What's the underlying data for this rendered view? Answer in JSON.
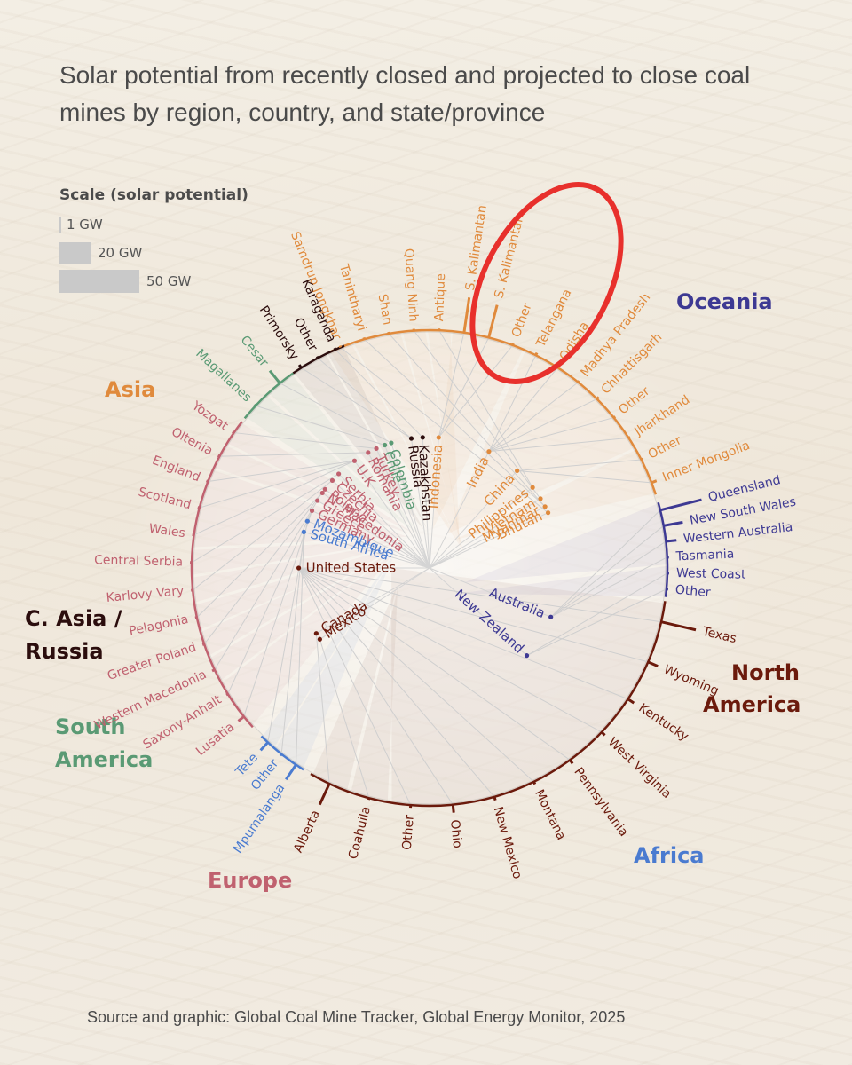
{
  "title": "Solar potential from recently closed and projected to close coal mines by region, country, and state/province",
  "source": "Source and graphic: Global Coal Mine Tracker, Global Energy Monitor, 2025",
  "scale": {
    "title": "Scale (solar potential)",
    "items": [
      {
        "label": "1 GW",
        "value": 1
      },
      {
        "label": "20 GW",
        "value": 20
      },
      {
        "label": "50 GW",
        "value": 50
      }
    ]
  },
  "colors": {
    "asia": "#e08a3c",
    "oceania": "#3d3993",
    "north_america": "#6b1a0c",
    "africa": "#4a7bd0",
    "europe": "#c0616f",
    "south_america": "#5a9a74",
    "central_asia_russia": "#2b0d0d",
    "highlight": "#e8302c"
  },
  "chart_data": {
    "type": "radial hierarchy",
    "unit": "GW",
    "highlight": [
      "Queensland",
      "New South Wales"
    ],
    "regions": [
      {
        "name": "Asia",
        "key": "asia",
        "label_lines": [
          "Asia"
        ],
        "countries": [
          "China",
          "India",
          "Indonesia",
          "Philippines",
          "Vietnam",
          "Myanmar",
          "Bhutan"
        ],
        "states": [
          {
            "name": "Inner Mongolia",
            "country": "China",
            "value": 6
          },
          {
            "name": "Other",
            "country": "China",
            "value": 2
          },
          {
            "name": "Jharkhand",
            "country": "India",
            "value": 2
          },
          {
            "name": "Other",
            "country": "India",
            "value": 2
          },
          {
            "name": "Chhattisgarh",
            "country": "India",
            "value": 3
          },
          {
            "name": "Madhya Pradesh",
            "country": "India",
            "value": 2
          },
          {
            "name": "Odisha",
            "country": "India",
            "value": 3
          },
          {
            "name": "Telangana",
            "country": "India",
            "value": 3
          },
          {
            "name": "Other",
            "country": "Indonesia",
            "value": 1
          },
          {
            "name": "S. Kalimantan",
            "country": "Indonesia",
            "value": 38
          },
          {
            "name": "S. Kalimantan",
            "country": "Indonesia",
            "value": 40
          },
          {
            "name": "Antique",
            "country": "Philippines",
            "value": 1
          },
          {
            "name": "Quang Ninh",
            "country": "Vietnam",
            "value": 1
          },
          {
            "name": "Shan",
            "country": "Myanmar",
            "value": 1
          },
          {
            "name": "Tanintharyi",
            "country": "Myanmar",
            "value": 1
          },
          {
            "name": "Samdrup Jongkhar",
            "country": "Bhutan",
            "value": 1
          }
        ]
      },
      {
        "name": "C. Asia / Russia",
        "key": "central_asia_russia",
        "label_lines": [
          "C. Asia /",
          "Russia"
        ],
        "countries": [
          "Kazakhstan",
          "Russia"
        ],
        "states": [
          {
            "name": "Karaganda",
            "country": "Kazakhstan",
            "value": 1
          },
          {
            "name": "Other",
            "country": "Russia",
            "value": 1
          },
          {
            "name": "Primorsky",
            "country": "Russia",
            "value": 4
          }
        ]
      },
      {
        "name": "South America",
        "key": "south_america",
        "label_lines": [
          "South",
          "America"
        ],
        "countries": [
          "Colombia",
          "Chile"
        ],
        "states": [
          {
            "name": "Cesar",
            "country": "Colombia",
            "value": 18
          },
          {
            "name": "Magallanes",
            "country": "Chile",
            "value": 1
          }
        ]
      },
      {
        "name": "Europe",
        "key": "europe",
        "label_lines": [
          "Europe"
        ],
        "countries": [
          "Turkey",
          "Romania",
          "U.K",
          "Serbia",
          "Czechia",
          "Poland",
          "Greece",
          "Germany",
          "N. Macedonia"
        ],
        "states": [
          {
            "name": "Yozgat",
            "country": "Turkey",
            "value": 1
          },
          {
            "name": "Oltenia",
            "country": "Romania",
            "value": 1
          },
          {
            "name": "England",
            "country": "U.K",
            "value": 1
          },
          {
            "name": "Scotland",
            "country": "U.K",
            "value": 1
          },
          {
            "name": "Wales",
            "country": "U.K",
            "value": 1
          },
          {
            "name": "Central Serbia",
            "country": "Serbia",
            "value": 1
          },
          {
            "name": "Karlovy Vary",
            "country": "Czechia",
            "value": 1
          },
          {
            "name": "Pelagonia",
            "country": "N. Macedonia",
            "value": 1
          },
          {
            "name": "Greater Poland",
            "country": "Poland",
            "value": 1
          },
          {
            "name": "Western Macedonia",
            "country": "Greece",
            "value": 3
          },
          {
            "name": "Saxony-Anhalt",
            "country": "Germany",
            "value": 1
          },
          {
            "name": "Lusatia",
            "country": "Germany",
            "value": 8
          }
        ]
      },
      {
        "name": "Africa",
        "key": "africa",
        "label_lines": [
          "Africa"
        ],
        "countries": [
          "Mozambique",
          "South Africa"
        ],
        "states": [
          {
            "name": "Tete",
            "country": "Mozambique",
            "value": 12
          },
          {
            "name": "Other",
            "country": "South Africa",
            "value": 1
          },
          {
            "name": "Mpumalanga",
            "country": "South Africa",
            "value": 20
          }
        ]
      },
      {
        "name": "North America",
        "key": "north_america",
        "label_lines": [
          "North",
          "America"
        ],
        "countries": [
          "Canada",
          "Mexico",
          "United States"
        ],
        "states": [
          {
            "name": "Alberta",
            "country": "Canada",
            "value": 26
          },
          {
            "name": "Coahuila",
            "country": "Mexico",
            "value": 1
          },
          {
            "name": "Other",
            "country": "United States",
            "value": 3
          },
          {
            "name": "Ohio",
            "country": "United States",
            "value": 9
          },
          {
            "name": "New Mexico",
            "country": "United States",
            "value": 4
          },
          {
            "name": "Montana",
            "country": "United States",
            "value": 3
          },
          {
            "name": "Pennsylvania",
            "country": "United States",
            "value": 5
          },
          {
            "name": "West Virginia",
            "country": "United States",
            "value": 5
          },
          {
            "name": "Kentucky",
            "country": "United States",
            "value": 8
          },
          {
            "name": "Wyoming",
            "country": "United States",
            "value": 12
          },
          {
            "name": "Texas",
            "country": "United States",
            "value": 40
          }
        ]
      },
      {
        "name": "Oceania",
        "key": "oceania",
        "label_lines": [
          "Oceania"
        ],
        "countries": [
          "Australia",
          "New Zealand"
        ],
        "states": [
          {
            "name": "Other",
            "country": "New Zealand",
            "value": 1
          },
          {
            "name": "West Coast",
            "country": "New Zealand",
            "value": 1
          },
          {
            "name": "Tasmania",
            "country": "Australia",
            "value": 1
          },
          {
            "name": "Western Australia",
            "country": "Australia",
            "value": 12
          },
          {
            "name": "New South Wales",
            "country": "Australia",
            "value": 22
          },
          {
            "name": "Queensland",
            "country": "Australia",
            "value": 48
          }
        ]
      }
    ]
  }
}
